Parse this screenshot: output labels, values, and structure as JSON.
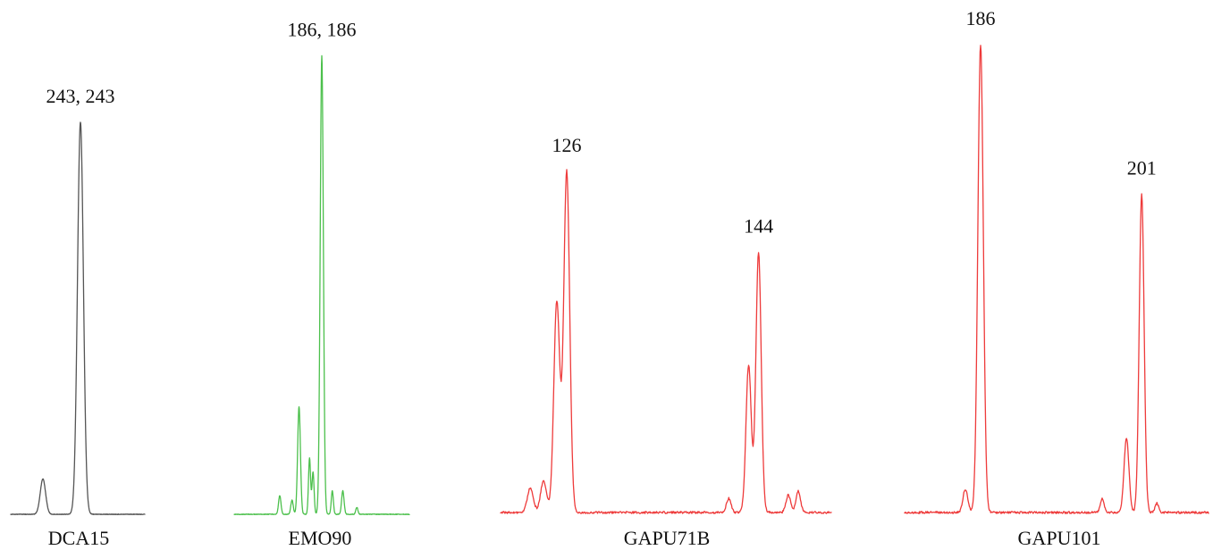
{
  "chart_data": [
    {
      "type": "line",
      "name": "DCA15",
      "color": "#555555",
      "x_range": [
        0,
        100
      ],
      "peaks": [
        {
          "x": 24,
          "height": 0.09,
          "width": 2.0,
          "label": ""
        },
        {
          "x": 52,
          "height": 1.0,
          "width": 2.2,
          "label": "243, 243"
        }
      ]
    },
    {
      "type": "line",
      "name": "EMO90",
      "color": "#4cc04c",
      "x_range": [
        0,
        100
      ],
      "peaks": [
        {
          "x": 26,
          "height": 0.04,
          "width": 0.7,
          "label": ""
        },
        {
          "x": 33,
          "height": 0.03,
          "width": 0.7,
          "label": ""
        },
        {
          "x": 37,
          "height": 0.23,
          "width": 0.8,
          "label": ""
        },
        {
          "x": 43,
          "height": 0.12,
          "width": 0.6,
          "label": ""
        },
        {
          "x": 45,
          "height": 0.09,
          "width": 0.6,
          "label": ""
        },
        {
          "x": 50,
          "height": 0.98,
          "width": 0.9,
          "label": "186, 186"
        },
        {
          "x": 56,
          "height": 0.05,
          "width": 0.6,
          "label": ""
        },
        {
          "x": 62,
          "height": 0.05,
          "width": 0.7,
          "label": ""
        },
        {
          "x": 70,
          "height": 0.015,
          "width": 0.6,
          "label": ""
        }
      ]
    },
    {
      "type": "line",
      "name": "GAPU71B",
      "color": "#ee3b3b",
      "x_range": [
        0,
        100
      ],
      "peaks": [
        {
          "x": 9,
          "height": 0.07,
          "width": 0.9,
          "label": ""
        },
        {
          "x": 13,
          "height": 0.09,
          "width": 0.9,
          "label": ""
        },
        {
          "x": 17,
          "height": 0.6,
          "width": 0.9,
          "label": ""
        },
        {
          "x": 20,
          "height": 0.97,
          "width": 0.9,
          "label": "126"
        },
        {
          "x": 69,
          "height": 0.04,
          "width": 0.7,
          "label": ""
        },
        {
          "x": 75,
          "height": 0.42,
          "width": 0.8,
          "label": ""
        },
        {
          "x": 78,
          "height": 0.74,
          "width": 0.8,
          "label": "144"
        },
        {
          "x": 87,
          "height": 0.05,
          "width": 0.7,
          "label": ""
        },
        {
          "x": 90,
          "height": 0.06,
          "width": 0.7,
          "label": ""
        }
      ]
    },
    {
      "type": "line",
      "name": "GAPU101",
      "color": "#ee3b3b",
      "x_range": [
        0,
        100
      ],
      "peaks": [
        {
          "x": 20,
          "height": 0.05,
          "width": 0.8,
          "label": ""
        },
        {
          "x": 25,
          "height": 1.0,
          "width": 0.9,
          "label": "186"
        },
        {
          "x": 65,
          "height": 0.03,
          "width": 0.6,
          "label": ""
        },
        {
          "x": 73,
          "height": 0.16,
          "width": 0.8,
          "label": ""
        },
        {
          "x": 78,
          "height": 0.68,
          "width": 0.8,
          "label": "201"
        },
        {
          "x": 83,
          "height": 0.02,
          "width": 0.6,
          "label": ""
        }
      ]
    }
  ]
}
